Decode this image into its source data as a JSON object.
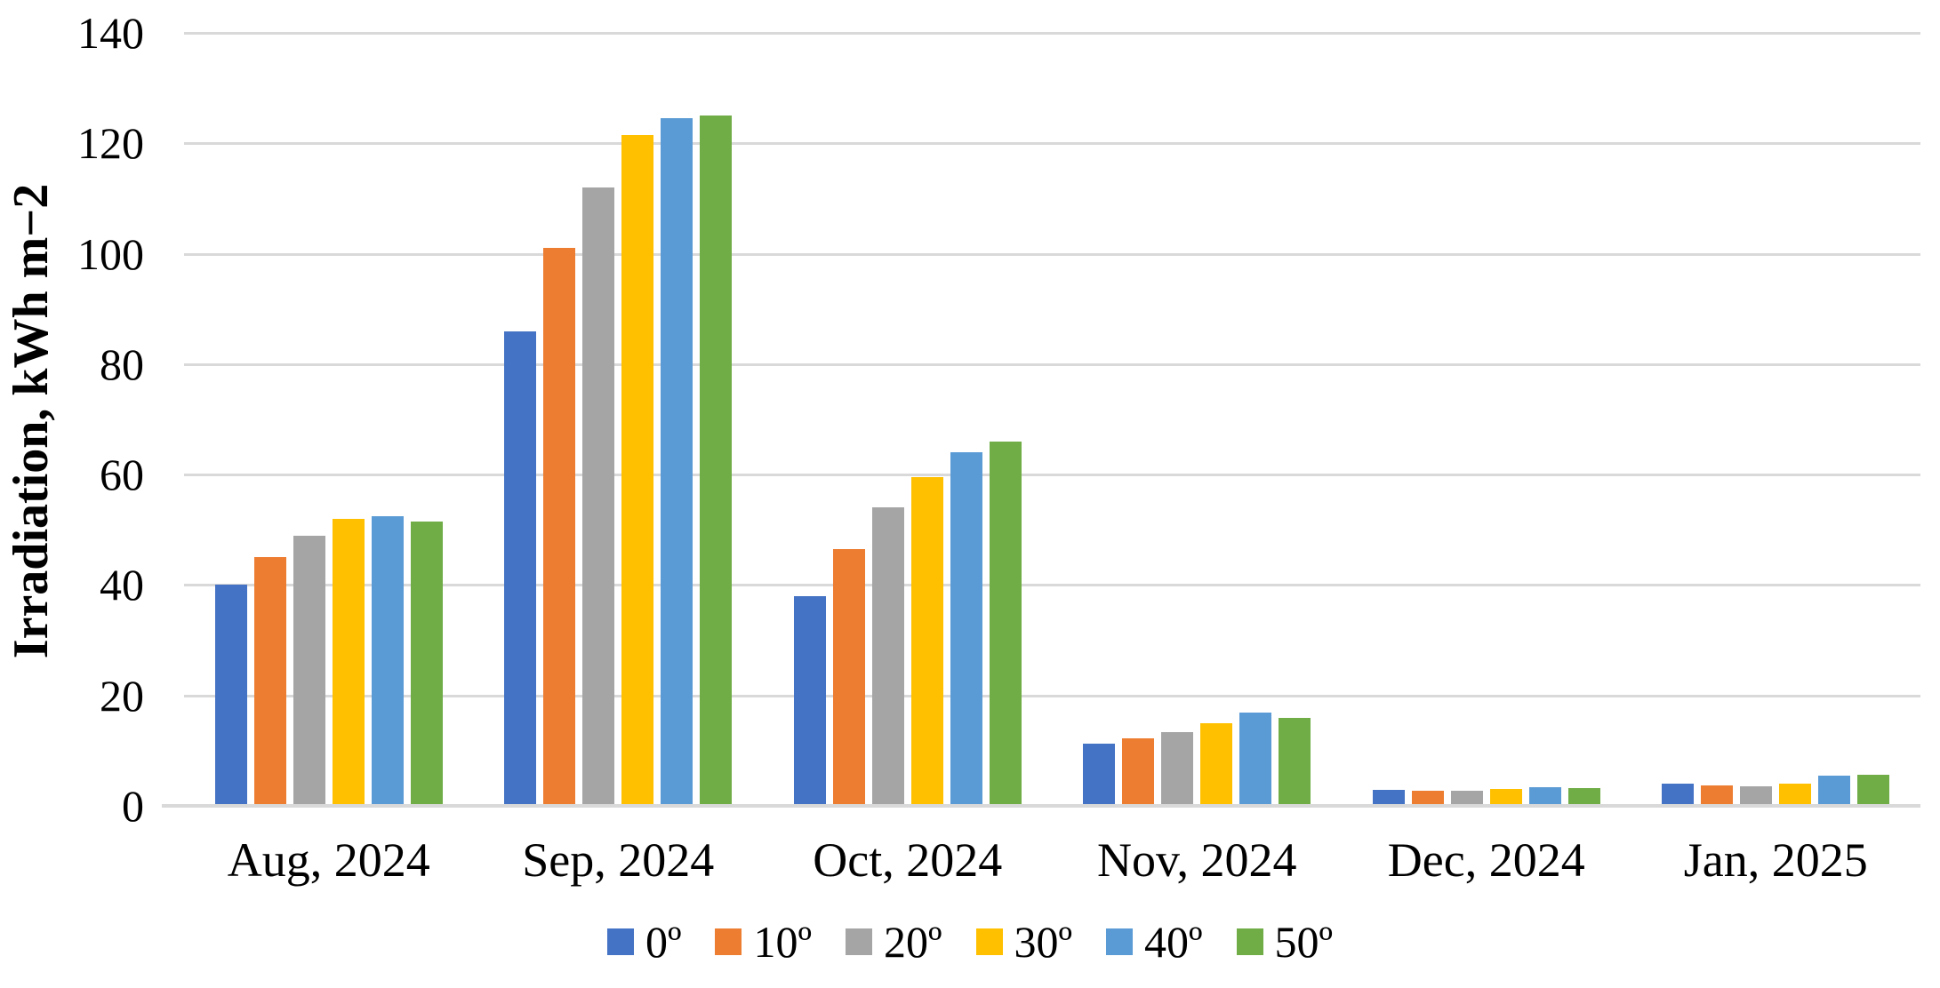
{
  "chart_data": {
    "type": "bar",
    "title": "",
    "xlabel": "",
    "ylabel": "Irradiation, kWh m−2",
    "categories": [
      "Aug, 2024",
      "Sep, 2024",
      "Oct, 2024",
      "Nov, 2024",
      "Dec, 2024",
      "Jan, 2025"
    ],
    "series": [
      {
        "name": "0º",
        "color": "#4472C4",
        "values": [
          40,
          86,
          38,
          11.3,
          2.9,
          4.1
        ]
      },
      {
        "name": "10º",
        "color": "#ED7D31",
        "values": [
          45,
          101,
          46.5,
          12.2,
          2.7,
          3.7
        ]
      },
      {
        "name": "20º",
        "color": "#A5A5A5",
        "values": [
          49,
          112,
          54,
          13.4,
          2.8,
          3.5
        ]
      },
      {
        "name": "30º",
        "color": "#FFC000",
        "values": [
          52,
          121.5,
          59.5,
          14.9,
          3.0,
          4.1
        ]
      },
      {
        "name": "40º",
        "color": "#5B9BD5",
        "values": [
          52.5,
          124.5,
          64,
          16.9,
          3.4,
          5.5
        ]
      },
      {
        "name": "50º",
        "color": "#70AD47",
        "values": [
          51.5,
          125,
          66,
          16,
          3.2,
          5.6
        ]
      }
    ],
    "y_ticks": [
      0,
      20,
      40,
      60,
      80,
      100,
      120,
      140
    ],
    "ylim": [
      0,
      140
    ],
    "grid": true,
    "gridline_color": "#D9D9D9",
    "legend_position": "bottom"
  }
}
